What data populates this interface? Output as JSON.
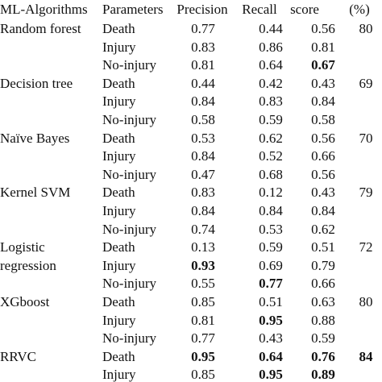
{
  "table": {
    "header": [
      "ML-Algorithms",
      "Parameters",
      "Precision",
      "Recall",
      "score",
      "(%)"
    ],
    "groups": [
      {
        "algorithm": "Random forest",
        "accuracy": 80,
        "rows": [
          [
            "Death",
            0.77,
            0.44,
            0.56
          ],
          [
            "Injury",
            0.83,
            0.86,
            0.81
          ],
          [
            "No-injury",
            0.81,
            0.64,
            0.67
          ]
        ]
      },
      {
        "algorithm": "Decision tree",
        "accuracy": 69,
        "rows": [
          [
            "Death",
            0.44,
            0.42,
            0.43
          ],
          [
            "Injury",
            0.84,
            0.83,
            0.84
          ],
          [
            "No-injury",
            0.58,
            0.59,
            0.58
          ]
        ]
      },
      {
        "algorithm": "Naïve Bayes",
        "accuracy": 70,
        "rows": [
          [
            "Death",
            0.53,
            0.62,
            0.56
          ],
          [
            "Injury",
            0.84,
            0.52,
            0.66
          ],
          [
            "No-injury",
            0.47,
            0.68,
            0.56
          ]
        ]
      },
      {
        "algorithm": "Kernel SVM",
        "accuracy": 79,
        "rows": [
          [
            "Death",
            0.83,
            0.12,
            0.43
          ],
          [
            "Injury",
            0.84,
            0.84,
            0.84
          ],
          [
            "No-injury",
            0.74,
            0.53,
            0.62
          ]
        ]
      },
      {
        "algorithm": "Logistic regression",
        "accuracy": 72,
        "rows": [
          [
            "Death",
            0.13,
            0.59,
            0.51
          ],
          [
            "Injury",
            0.93,
            0.69,
            0.79
          ],
          [
            "No-injury",
            0.55,
            0.77,
            0.66
          ]
        ]
      },
      {
        "algorithm": "XGboost",
        "accuracy": 80,
        "rows": [
          [
            "Death",
            0.85,
            0.51,
            0.63
          ],
          [
            "Injury",
            0.81,
            0.95,
            0.88
          ],
          [
            "No-injury",
            0.77,
            0.43,
            0.59
          ]
        ]
      },
      {
        "algorithm": "RRVC",
        "accuracy": 84,
        "rows": [
          [
            "Death",
            0.95,
            0.64,
            0.76
          ],
          [
            "Injury",
            0.85,
            0.95,
            0.89
          ]
        ]
      }
    ]
  }
}
